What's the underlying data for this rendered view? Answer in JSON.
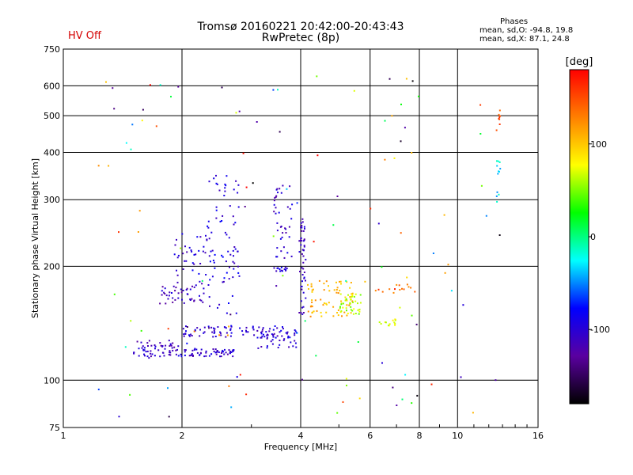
{
  "header": {
    "title": "Tromsø 20160221 20:42:00-20:43:43",
    "subtitle": "RwPretec (8p)",
    "status": "HV Off",
    "stats_heading": "Phases",
    "stats_o": "mean, sd,O: -94.8, 19.8",
    "stats_x": "mean, sd,X:  87.1, 24.8"
  },
  "colors": {
    "grid": "#000000",
    "status": "#d40000",
    "colorbar_stops": [
      "#000000",
      "#5a00a0",
      "#0000ff",
      "#00ffff",
      "#00ff00",
      "#ffff00",
      "#ff8000",
      "#ff0000"
    ]
  },
  "chart_data": {
    "type": "scatter",
    "title": "Tromsø 20160221 20:42:00-20:43:43",
    "subtitle": "RwPretec (8p)",
    "xlabel": "Frequency [MHz]",
    "ylabel": "Stationary phase Virtual Height [km]",
    "x_scale": "log",
    "y_scale": "log",
    "xlim": [
      1,
      16
    ],
    "ylim": [
      75,
      750
    ],
    "x_ticks": [
      1,
      2,
      4,
      6,
      8,
      10,
      16
    ],
    "y_ticks": [
      75,
      100,
      200,
      300,
      400,
      500,
      600,
      750
    ],
    "grid": true,
    "colorbar": {
      "label": "[deg]",
      "range": [
        -180,
        180
      ],
      "ticks": [
        100,
        0,
        -100
      ]
    },
    "clusters": [
      {
        "fmin": 1.5,
        "fmax": 1.95,
        "hmin": 115,
        "hmax": 128,
        "phase": -110,
        "n": 60
      },
      {
        "fmin": 1.95,
        "fmax": 2.7,
        "hmin": 116,
        "hmax": 122,
        "phase": -105,
        "n": 60
      },
      {
        "fmin": 2.0,
        "fmax": 3.6,
        "hmin": 130,
        "hmax": 140,
        "phase": -100,
        "n": 80
      },
      {
        "fmin": 3.1,
        "fmax": 3.95,
        "hmin": 122,
        "hmax": 138,
        "phase": -105,
        "n": 40
      },
      {
        "fmin": 1.75,
        "fmax": 2.3,
        "hmin": 160,
        "hmax": 180,
        "phase": -110,
        "n": 45
      },
      {
        "fmin": 1.9,
        "fmax": 2.3,
        "hmin": 180,
        "hmax": 245,
        "phase": -100,
        "n": 35
      },
      {
        "fmin": 2.3,
        "fmax": 2.8,
        "hmin": 150,
        "hmax": 360,
        "phase": -95,
        "n": 80
      },
      {
        "fmin": 3.4,
        "fmax": 3.7,
        "hmin": 195,
        "hmax": 200,
        "phase": -95,
        "n": 14
      },
      {
        "fmin": 3.4,
        "fmax": 3.8,
        "hmin": 210,
        "hmax": 330,
        "phase": -105,
        "n": 40
      },
      {
        "fmin": 3.95,
        "fmax": 4.1,
        "hmin": 150,
        "hmax": 270,
        "phase": -110,
        "n": 50
      },
      {
        "fmin": 4.1,
        "fmax": 5.4,
        "hmin": 148,
        "hmax": 185,
        "phase": 110,
        "n": 70
      },
      {
        "fmin": 5.0,
        "fmax": 5.7,
        "hmin": 150,
        "hmax": 170,
        "phase": 60,
        "n": 40
      },
      {
        "fmin": 6.3,
        "fmax": 7.0,
        "hmin": 140,
        "hmax": 146,
        "phase": 70,
        "n": 14
      },
      {
        "fmin": 6.0,
        "fmax": 7.8,
        "hmin": 170,
        "hmax": 180,
        "phase": 140,
        "n": 14
      },
      {
        "fmin": 12.5,
        "fmax": 12.8,
        "hmin": 290,
        "hmax": 400,
        "phase": -30,
        "n": 12
      },
      {
        "fmin": 12.5,
        "fmax": 12.8,
        "hmin": 450,
        "hmax": 530,
        "phase": 150,
        "n": 8
      },
      {
        "fmin": 1.2,
        "fmax": 12.8,
        "hmin": 80,
        "hmax": 650,
        "phase": 0,
        "n": 120
      }
    ]
  }
}
